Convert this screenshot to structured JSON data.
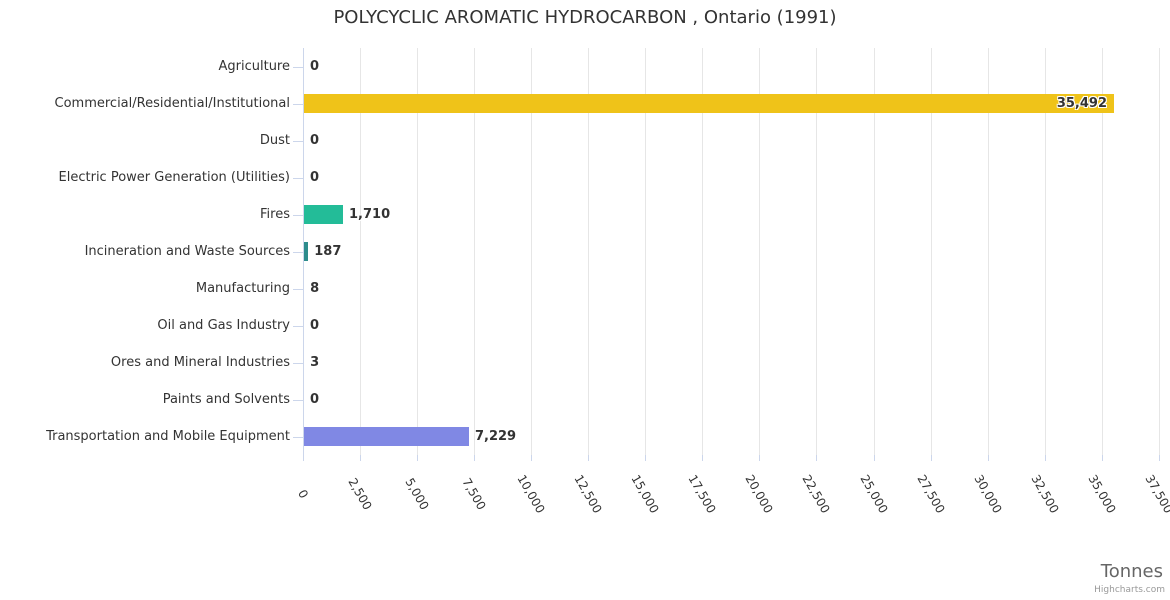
{
  "chart_data": {
    "type": "bar",
    "title": "POLYCYCLIC AROMATIC HYDROCARBON , Ontario (1991)",
    "xlabel": "Tonnes",
    "credit": "Highcharts.com",
    "categories": [
      "Agriculture",
      "Commercial/Residential/Institutional",
      "Dust",
      "Electric Power Generation (Utilities)",
      "Fires",
      "Incineration and Waste Sources",
      "Manufacturing",
      "Oil and Gas Industry",
      "Ores and Mineral Industries",
      "Paints and Solvents",
      "Transportation and Mobile Equipment"
    ],
    "values": [
      0,
      35492,
      0,
      0,
      1710,
      187,
      8,
      0,
      3,
      0,
      7229
    ],
    "value_labels": [
      "0",
      "35,492",
      "0",
      "0",
      "1,710",
      "187",
      "8",
      "0",
      "3",
      "0",
      "7,229"
    ],
    "point_colors": [
      null,
      "#efc319",
      null,
      null,
      "#23bc98",
      "#2d8c8c",
      null,
      null,
      null,
      null,
      "#8088e4"
    ],
    "xlim": [
      0,
      37500
    ],
    "x_tick_values": [
      0,
      2500,
      5000,
      7500,
      10000,
      12500,
      15000,
      17500,
      20000,
      22500,
      25000,
      27500,
      30000,
      32500,
      35000,
      37500
    ],
    "x_tick_labels": [
      "0",
      "2,500",
      "5,000",
      "7,500",
      "10,000",
      "12,500",
      "15,000",
      "17,500",
      "20,000",
      "22,500",
      "25,000",
      "27,500",
      "30,000",
      "32,500",
      "35,000",
      "37,500"
    ],
    "grid": true,
    "legend": "none",
    "x_label_rotation_deg": 60,
    "colors": {
      "grid": "#e6e6e6",
      "axis": "#ccd6eb",
      "text": "#333333",
      "axis_title": "#666666",
      "credit": "#999999"
    }
  }
}
